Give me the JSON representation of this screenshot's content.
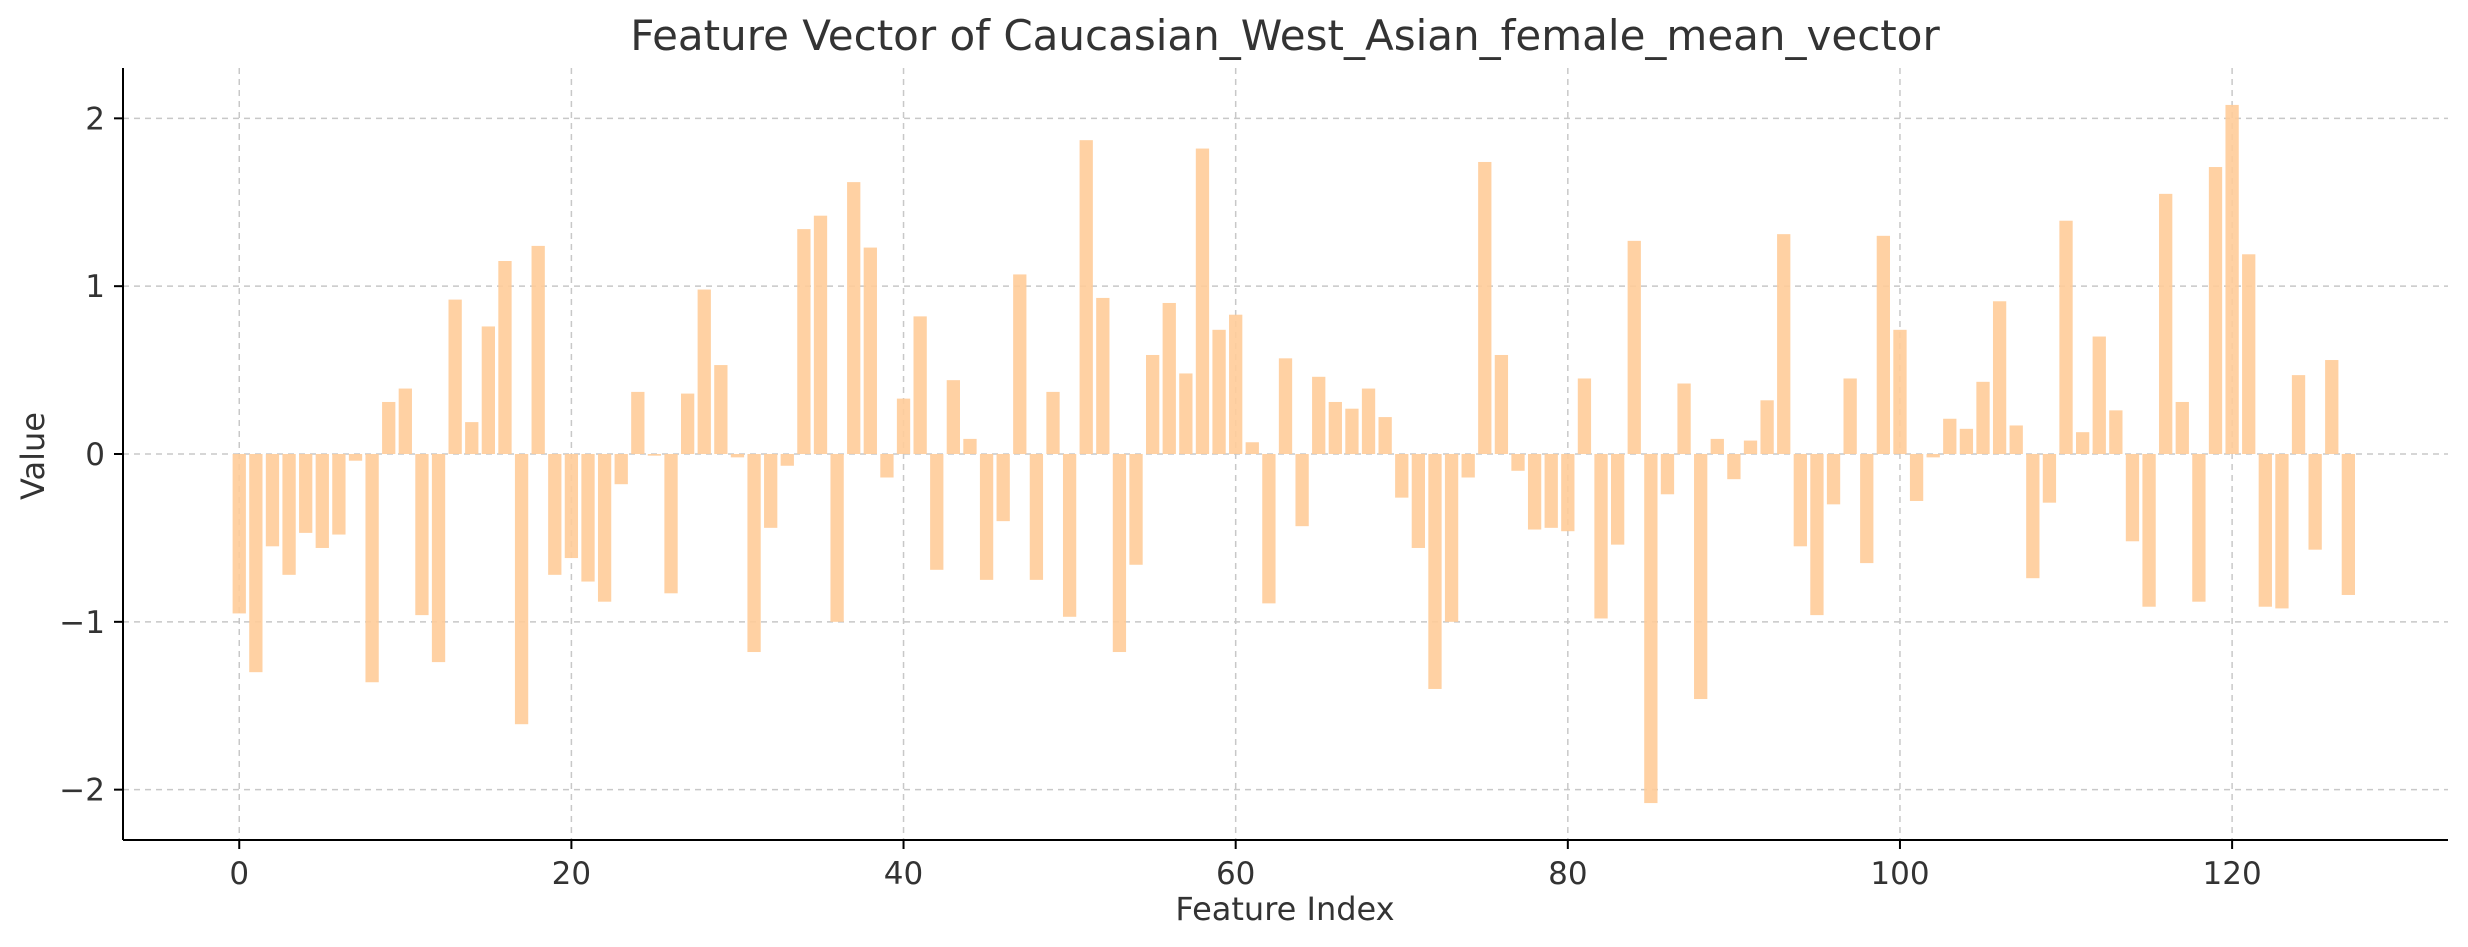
{
  "chart_data": {
    "type": "bar",
    "title": "Feature Vector of Caucasian_West_Asian_female_mean_vector",
    "xlabel": "Feature Index",
    "ylabel": "Value",
    "xlim": [
      -7,
      133
    ],
    "ylim": [
      -2.3,
      2.3
    ],
    "x_ticks": [
      0,
      20,
      40,
      60,
      80,
      100,
      120
    ],
    "y_ticks": [
      -2,
      -1,
      0,
      1,
      2
    ],
    "y_tick_labels": [
      "−2",
      "−1",
      "0",
      "1",
      "2"
    ],
    "grid": true,
    "bar_color": "#ffcc99",
    "values": [
      -0.95,
      -1.3,
      -0.55,
      -0.72,
      -0.47,
      -0.56,
      -0.48,
      -0.04,
      -1.36,
      0.31,
      0.39,
      -0.96,
      -1.24,
      0.92,
      0.19,
      0.76,
      1.15,
      -1.61,
      1.24,
      -0.72,
      -0.62,
      -0.76,
      -0.88,
      -0.18,
      0.37,
      -0.01,
      -0.83,
      0.36,
      0.98,
      0.53,
      -0.02,
      -1.18,
      -0.44,
      -0.07,
      1.34,
      1.42,
      -1.0,
      1.62,
      1.23,
      -0.14,
      0.33,
      0.82,
      -0.69,
      0.44,
      0.09,
      -0.75,
      -0.4,
      1.07,
      -0.75,
      0.37,
      -0.97,
      1.87,
      0.93,
      -1.18,
      -0.66,
      0.59,
      0.9,
      0.48,
      1.82,
      0.74,
      0.83,
      0.07,
      -0.89,
      0.57,
      -0.43,
      0.46,
      0.31,
      0.27,
      0.39,
      0.22,
      -0.26,
      -0.56,
      -1.4,
      -1.0,
      -0.14,
      1.74,
      0.59,
      -0.1,
      -0.45,
      -0.44,
      -0.46,
      0.45,
      -0.98,
      -0.54,
      1.27,
      -2.08,
      -0.24,
      0.42,
      -1.46,
      0.09,
      -0.15,
      0.08,
      0.32,
      1.31,
      -0.55,
      -0.96,
      -0.3,
      0.45,
      -0.65,
      1.3,
      0.74,
      -0.28,
      -0.02,
      0.21,
      0.15,
      0.43,
      0.91,
      0.17,
      -0.74,
      -0.29,
      1.39,
      0.13,
      0.7,
      0.26,
      -0.52,
      -0.91,
      1.55,
      0.31,
      -0.88,
      1.71,
      2.08,
      1.19,
      -0.91,
      -0.92,
      0.47,
      -0.57,
      0.56,
      -0.84
    ]
  }
}
